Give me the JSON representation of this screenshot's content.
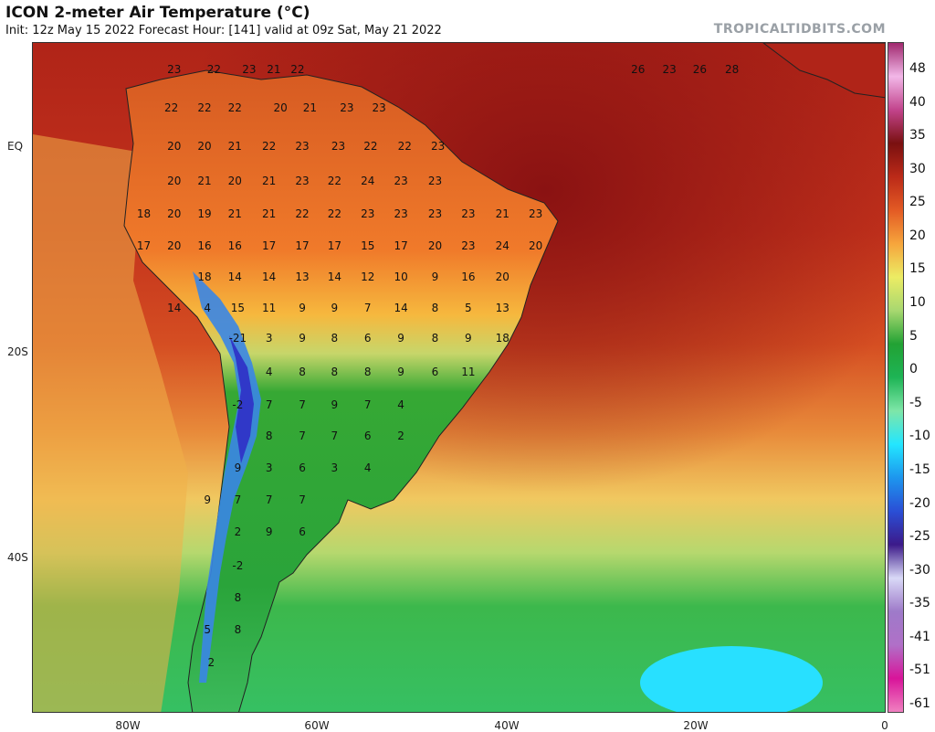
{
  "header": {
    "title": "ICON 2-meter Air Temperature (°C)",
    "subtitle": "Init: 12z May 15 2022   Forecast Hour: [141]   valid at 09z Sat, May 21 2022",
    "brand": "TROPICALTIDBITS.COM"
  },
  "axes": {
    "y_labels": [
      "EQ",
      "20S",
      "40S"
    ],
    "x_labels": [
      "80W",
      "60W",
      "40W",
      "20W",
      "0"
    ]
  },
  "colorbar": {
    "labels": [
      "48",
      "40",
      "35",
      "30",
      "25",
      "20",
      "15",
      "10",
      "5",
      "0",
      "-5",
      "-10",
      "-15",
      "-20",
      "-25",
      "-30",
      "-35",
      "-41",
      "-51",
      "-61"
    ],
    "stops": [
      "#a0286e",
      "#f2b7e8",
      "#c2448c",
      "#7a1010",
      "#bb2a18",
      "#e35a24",
      "#f6a53c",
      "#ecec64",
      "#a8d870",
      "#22a234",
      "#1eb455",
      "#7ee6a8",
      "#23e6ff",
      "#1d96ee",
      "#2a4fd6",
      "#3c1a8a",
      "#d9d9f7",
      "#9e7ac9",
      "#b070c8",
      "#d8149a",
      "#f080c0"
    ]
  },
  "map": {
    "temperature_labels": [
      {
        "t": "23",
        "lon": -75.1,
        "lat": 9.2
      },
      {
        "t": "22",
        "lon": -70.9,
        "lat": 9.2
      },
      {
        "t": "23",
        "lon": -67.2,
        "lat": 9.2
      },
      {
        "t": "21",
        "lon": -64.6,
        "lat": 9.2
      },
      {
        "t": "22",
        "lon": -62.1,
        "lat": 9.2
      },
      {
        "t": "26",
        "lon": -26.2,
        "lat": 9.2
      },
      {
        "t": "23",
        "lon": -22.9,
        "lat": 9.2
      },
      {
        "t": "26",
        "lon": -19.7,
        "lat": 9.2
      },
      {
        "t": "28",
        "lon": -16.3,
        "lat": 9.2
      },
      {
        "t": "22",
        "lon": -75.4,
        "lat": 5.2
      },
      {
        "t": "22",
        "lon": -71.9,
        "lat": 5.2
      },
      {
        "t": "22",
        "lon": -68.7,
        "lat": 5.2
      },
      {
        "t": "20",
        "lon": -63.9,
        "lat": 5.2
      },
      {
        "t": "21",
        "lon": -60.8,
        "lat": 5.2
      },
      {
        "t": "23",
        "lon": -56.9,
        "lat": 5.2
      },
      {
        "t": "23",
        "lon": -53.5,
        "lat": 5.2
      },
      {
        "t": "20",
        "lon": -75.1,
        "lat": 1.1
      },
      {
        "t": "20",
        "lon": -71.9,
        "lat": 1.1
      },
      {
        "t": "21",
        "lon": -68.7,
        "lat": 1.1
      },
      {
        "t": "22",
        "lon": -65.1,
        "lat": 1.1
      },
      {
        "t": "23",
        "lon": -61.6,
        "lat": 1.1
      },
      {
        "t": "23",
        "lon": -57.8,
        "lat": 1.1
      },
      {
        "t": "22",
        "lon": -54.4,
        "lat": 1.1
      },
      {
        "t": "22",
        "lon": -50.8,
        "lat": 1.1
      },
      {
        "t": "23",
        "lon": -47.3,
        "lat": 1.1
      },
      {
        "t": "20",
        "lon": -75.1,
        "lat": -2.5
      },
      {
        "t": "21",
        "lon": -71.9,
        "lat": -2.5
      },
      {
        "t": "20",
        "lon": -68.7,
        "lat": -2.5
      },
      {
        "t": "21",
        "lon": -65.1,
        "lat": -2.5
      },
      {
        "t": "23",
        "lon": -61.6,
        "lat": -2.5
      },
      {
        "t": "22",
        "lon": -58.2,
        "lat": -2.5
      },
      {
        "t": "24",
        "lon": -54.7,
        "lat": -2.5
      },
      {
        "t": "23",
        "lon": -51.2,
        "lat": -2.5
      },
      {
        "t": "23",
        "lon": -47.6,
        "lat": -2.5
      },
      {
        "t": "18",
        "lon": -78.3,
        "lat": -6.0
      },
      {
        "t": "20",
        "lon": -75.1,
        "lat": -6.0
      },
      {
        "t": "19",
        "lon": -71.9,
        "lat": -6.0
      },
      {
        "t": "21",
        "lon": -68.7,
        "lat": -6.0
      },
      {
        "t": "21",
        "lon": -65.1,
        "lat": -6.0
      },
      {
        "t": "22",
        "lon": -61.6,
        "lat": -6.0
      },
      {
        "t": "22",
        "lon": -58.2,
        "lat": -6.0
      },
      {
        "t": "23",
        "lon": -54.7,
        "lat": -6.0
      },
      {
        "t": "23",
        "lon": -51.2,
        "lat": -6.0
      },
      {
        "t": "23",
        "lon": -47.6,
        "lat": -6.0
      },
      {
        "t": "23",
        "lon": -44.1,
        "lat": -6.0
      },
      {
        "t": "21",
        "lon": -40.5,
        "lat": -6.0
      },
      {
        "t": "23",
        "lon": -37.0,
        "lat": -6.0
      },
      {
        "t": "17",
        "lon": -78.3,
        "lat": -9.3
      },
      {
        "t": "20",
        "lon": -75.1,
        "lat": -9.3
      },
      {
        "t": "16",
        "lon": -71.9,
        "lat": -9.3
      },
      {
        "t": "16",
        "lon": -68.7,
        "lat": -9.3
      },
      {
        "t": "17",
        "lon": -65.1,
        "lat": -9.3
      },
      {
        "t": "17",
        "lon": -61.6,
        "lat": -9.3
      },
      {
        "t": "17",
        "lon": -58.2,
        "lat": -9.3
      },
      {
        "t": "15",
        "lon": -54.7,
        "lat": -9.3
      },
      {
        "t": "17",
        "lon": -51.2,
        "lat": -9.3
      },
      {
        "t": "20",
        "lon": -47.6,
        "lat": -9.3
      },
      {
        "t": "23",
        "lon": -44.1,
        "lat": -9.3
      },
      {
        "t": "24",
        "lon": -40.5,
        "lat": -9.3
      },
      {
        "t": "20",
        "lon": -37.0,
        "lat": -9.3
      },
      {
        "t": "18",
        "lon": -71.9,
        "lat": -12.6
      },
      {
        "t": "14",
        "lon": -68.7,
        "lat": -12.6
      },
      {
        "t": "14",
        "lon": -65.1,
        "lat": -12.6
      },
      {
        "t": "13",
        "lon": -61.6,
        "lat": -12.6
      },
      {
        "t": "14",
        "lon": -58.2,
        "lat": -12.6
      },
      {
        "t": "12",
        "lon": -54.7,
        "lat": -12.6
      },
      {
        "t": "10",
        "lon": -51.2,
        "lat": -12.6
      },
      {
        "t": "9",
        "lon": -47.6,
        "lat": -12.6
      },
      {
        "t": "16",
        "lon": -44.1,
        "lat": -12.6
      },
      {
        "t": "20",
        "lon": -40.5,
        "lat": -12.6
      },
      {
        "t": "14",
        "lon": -75.1,
        "lat": -15.9
      },
      {
        "t": "4",
        "lon": -71.6,
        "lat": -15.9
      },
      {
        "t": "15",
        "lon": -68.4,
        "lat": -15.9
      },
      {
        "t": "11",
        "lon": -65.1,
        "lat": -15.9
      },
      {
        "t": "9",
        "lon": -61.6,
        "lat": -15.9
      },
      {
        "t": "9",
        "lon": -58.2,
        "lat": -15.9
      },
      {
        "t": "7",
        "lon": -54.7,
        "lat": -15.9
      },
      {
        "t": "14",
        "lon": -51.2,
        "lat": -15.9
      },
      {
        "t": "8",
        "lon": -47.6,
        "lat": -15.9
      },
      {
        "t": "5",
        "lon": -44.1,
        "lat": -15.9
      },
      {
        "t": "13",
        "lon": -40.5,
        "lat": -15.9
      },
      {
        "t": "-21",
        "lon": -68.4,
        "lat": -19.0
      },
      {
        "t": "3",
        "lon": -65.1,
        "lat": -19.0
      },
      {
        "t": "9",
        "lon": -61.6,
        "lat": -19.0
      },
      {
        "t": "8",
        "lon": -58.2,
        "lat": -19.0
      },
      {
        "t": "6",
        "lon": -54.7,
        "lat": -19.0
      },
      {
        "t": "9",
        "lon": -51.2,
        "lat": -19.0
      },
      {
        "t": "8",
        "lon": -47.6,
        "lat": -19.0
      },
      {
        "t": "9",
        "lon": -44.1,
        "lat": -19.0
      },
      {
        "t": "18",
        "lon": -40.5,
        "lat": -19.0
      },
      {
        "t": "4",
        "lon": -65.1,
        "lat": -22.6
      },
      {
        "t": "8",
        "lon": -61.6,
        "lat": -22.6
      },
      {
        "t": "8",
        "lon": -58.2,
        "lat": -22.6
      },
      {
        "t": "8",
        "lon": -54.7,
        "lat": -22.6
      },
      {
        "t": "9",
        "lon": -51.2,
        "lat": -22.6
      },
      {
        "t": "6",
        "lon": -47.6,
        "lat": -22.6
      },
      {
        "t": "11",
        "lon": -44.1,
        "lat": -22.6
      },
      {
        "t": "-2",
        "lon": -68.4,
        "lat": -26.0
      },
      {
        "t": "7",
        "lon": -65.1,
        "lat": -26.0
      },
      {
        "t": "7",
        "lon": -61.6,
        "lat": -26.0
      },
      {
        "t": "9",
        "lon": -58.2,
        "lat": -26.0
      },
      {
        "t": "7",
        "lon": -54.7,
        "lat": -26.0
      },
      {
        "t": "4",
        "lon": -51.2,
        "lat": -26.0
      },
      {
        "t": "8",
        "lon": -65.1,
        "lat": -29.3
      },
      {
        "t": "7",
        "lon": -61.6,
        "lat": -29.3
      },
      {
        "t": "7",
        "lon": -58.2,
        "lat": -29.3
      },
      {
        "t": "6",
        "lon": -54.7,
        "lat": -29.3
      },
      {
        "t": "2",
        "lon": -51.2,
        "lat": -29.3
      },
      {
        "t": "9",
        "lon": -68.4,
        "lat": -32.7
      },
      {
        "t": "3",
        "lon": -65.1,
        "lat": -32.7
      },
      {
        "t": "6",
        "lon": -61.6,
        "lat": -32.7
      },
      {
        "t": "3",
        "lon": -58.2,
        "lat": -32.7
      },
      {
        "t": "4",
        "lon": -54.7,
        "lat": -32.7
      },
      {
        "t": "9",
        "lon": -71.6,
        "lat": -36.0
      },
      {
        "t": "7",
        "lon": -68.4,
        "lat": -36.0
      },
      {
        "t": "7",
        "lon": -65.1,
        "lat": -36.0
      },
      {
        "t": "7",
        "lon": -61.6,
        "lat": -36.0
      },
      {
        "t": "2",
        "lon": -68.4,
        "lat": -39.4
      },
      {
        "t": "9",
        "lon": -65.1,
        "lat": -39.4
      },
      {
        "t": "6",
        "lon": -61.6,
        "lat": -39.4
      },
      {
        "t": "-2",
        "lon": -68.4,
        "lat": -42.9
      },
      {
        "t": "8",
        "lon": -68.4,
        "lat": -46.3
      },
      {
        "t": "5",
        "lon": -71.6,
        "lat": -49.7
      },
      {
        "t": "8",
        "lon": -68.4,
        "lat": -49.7
      },
      {
        "t": "2",
        "lon": -71.2,
        "lat": -53.1
      }
    ]
  }
}
